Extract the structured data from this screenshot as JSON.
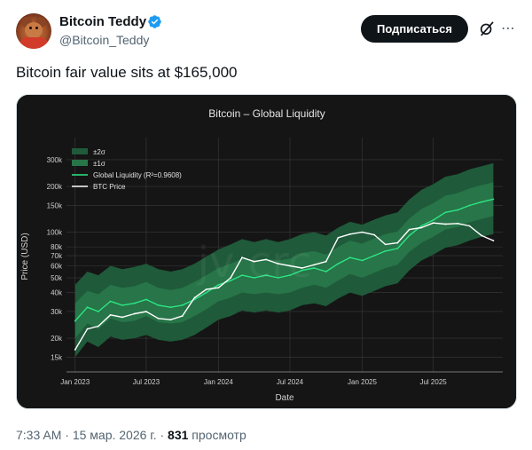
{
  "author": {
    "display_name": "Bitcoin Teddy",
    "handle": "@Bitcoin_Teddy",
    "verified": true,
    "avatar_icon": "teddy-bear-avatar"
  },
  "actions": {
    "subscribe_label": "Подписаться",
    "grok_icon": "grok-icon",
    "more_icon": "more-icon"
  },
  "tweet": {
    "text": "Bitcoin fair value sits at $165,000"
  },
  "meta": {
    "time": "7:33 AM",
    "separator": " · ",
    "date": "15 мар. 2026 г.",
    "views_count": "831",
    "views_label": "просмотр"
  },
  "colors": {
    "verified": "#1d9bf0",
    "band_2sigma": "#1f5a3a",
    "band_1sigma": "#277548",
    "fair_value_line": "#2ee585",
    "price_line": "#ffffff"
  },
  "chart_data": {
    "type": "line",
    "title": "Bitcoin – Global Liquidity",
    "xlabel": "Date",
    "ylabel": "Price (USD)",
    "yscale": "log",
    "ylim": [
      12000,
      420000
    ],
    "xlim": [
      "2022-12-10",
      "2025-12-25"
    ],
    "grid": true,
    "legend_position": "top-left",
    "x_ticks": [
      "Jan 2023",
      "Jul 2023",
      "Jan 2024",
      "Jul 2024",
      "Jan 2025",
      "Jul 2025"
    ],
    "x_tick_dates": [
      "2023-01-01",
      "2023-07-01",
      "2024-01-01",
      "2024-07-01",
      "2025-01-01",
      "2025-07-01"
    ],
    "y_ticks": [
      {
        "value": 15000,
        "label": "15k"
      },
      {
        "value": 20000,
        "label": "20k"
      },
      {
        "value": 30000,
        "label": "30k"
      },
      {
        "value": 40000,
        "label": "40k"
      },
      {
        "value": 50000,
        "label": "50k"
      },
      {
        "value": 60000,
        "label": "60k"
      },
      {
        "value": 70000,
        "label": "70k"
      },
      {
        "value": 80000,
        "label": "80k"
      },
      {
        "value": 100000,
        "label": "100k"
      },
      {
        "value": 150000,
        "label": "150k"
      },
      {
        "value": 200000,
        "label": "200k"
      },
      {
        "value": 300000,
        "label": "300k"
      }
    ],
    "legend": [
      {
        "name": "±2σ",
        "kind": "band2"
      },
      {
        "name": "±1σ",
        "kind": "band1"
      },
      {
        "name": "Global Liquidity (R²=0.9608)",
        "kind": "fair"
      },
      {
        "name": "BTC Price",
        "kind": "price"
      }
    ],
    "watermark": "jv crc",
    "dates": [
      "2023-01-01",
      "2023-02-01",
      "2023-03-01",
      "2023-04-01",
      "2023-05-01",
      "2023-06-01",
      "2023-07-01",
      "2023-08-01",
      "2023-09-01",
      "2023-10-01",
      "2023-11-01",
      "2023-12-01",
      "2024-01-01",
      "2024-02-01",
      "2024-03-01",
      "2024-04-01",
      "2024-05-01",
      "2024-06-01",
      "2024-07-01",
      "2024-08-01",
      "2024-09-01",
      "2024-10-01",
      "2024-11-01",
      "2024-12-01",
      "2025-01-01",
      "2025-02-01",
      "2025-03-01",
      "2025-04-01",
      "2025-05-01",
      "2025-06-01",
      "2025-07-01",
      "2025-08-01",
      "2025-09-01",
      "2025-10-01",
      "2025-11-01",
      "2025-12-01"
    ],
    "series": [
      {
        "name": "Global Liquidity (R²=0.9608)",
        "values": [
          26000,
          32000,
          30000,
          35000,
          33000,
          34000,
          36000,
          33000,
          32000,
          33000,
          36000,
          40000,
          45000,
          48000,
          52000,
          50000,
          52000,
          50000,
          52000,
          56000,
          58000,
          55000,
          62000,
          68000,
          65000,
          70000,
          75000,
          78000,
          95000,
          110000,
          120000,
          135000,
          140000,
          150000,
          158000,
          165000
        ]
      },
      {
        "name": "BTC Price",
        "values": [
          16800,
          23000,
          24000,
          28500,
          27500,
          29000,
          30000,
          27000,
          26500,
          28000,
          37000,
          42000,
          43000,
          50000,
          68000,
          64000,
          66000,
          62000,
          60000,
          58000,
          61000,
          64000,
          92000,
          97000,
          100000,
          96000,
          83000,
          85000,
          104000,
          107000,
          115000,
          113000,
          114000,
          110000,
          95000,
          88000
        ]
      }
    ],
    "bands": {
      "sigma1_lower": [
        20000,
        25000,
        23000,
        27000,
        25500,
        26000,
        28000,
        25500,
        25000,
        25500,
        28000,
        31000,
        35000,
        37000,
        40000,
        39000,
        40000,
        39000,
        40000,
        43000,
        45000,
        43000,
        48000,
        53000,
        50000,
        54000,
        58000,
        61000,
        74000,
        85000,
        93000,
        104000,
        108000,
        116000,
        122000,
        128000
      ],
      "sigma1_upper": [
        34000,
        41000,
        39000,
        45000,
        43000,
        44000,
        47000,
        43000,
        41500,
        43000,
        47000,
        52000,
        58000,
        62000,
        67000,
        65000,
        67000,
        65000,
        67000,
        73000,
        75000,
        71000,
        80000,
        88000,
        84000,
        91000,
        97000,
        101000,
        123000,
        142000,
        155000,
        174000,
        181000,
        194000,
        204000,
        213000
      ],
      "sigma2_lower": [
        15000,
        19000,
        17500,
        20500,
        19500,
        20000,
        21000,
        19500,
        19000,
        19500,
        21000,
        23500,
        26500,
        28000,
        30500,
        29500,
        30500,
        29500,
        30500,
        33000,
        34000,
        32500,
        36500,
        40000,
        38000,
        41000,
        44000,
        46000,
        56000,
        65000,
        71000,
        79000,
        82000,
        88000,
        93000,
        97000
      ],
      "sigma2_upper": [
        45000,
        55000,
        52000,
        60000,
        57000,
        59000,
        62000,
        57000,
        55000,
        57000,
        62000,
        69000,
        77000,
        83000,
        90000,
        86000,
        90000,
        86000,
        90000,
        97000,
        100000,
        95000,
        107000,
        117000,
        112000,
        121000,
        129000,
        135000,
        164000,
        190000,
        207000,
        232000,
        241000,
        259000,
        272000,
        285000
      ]
    }
  }
}
